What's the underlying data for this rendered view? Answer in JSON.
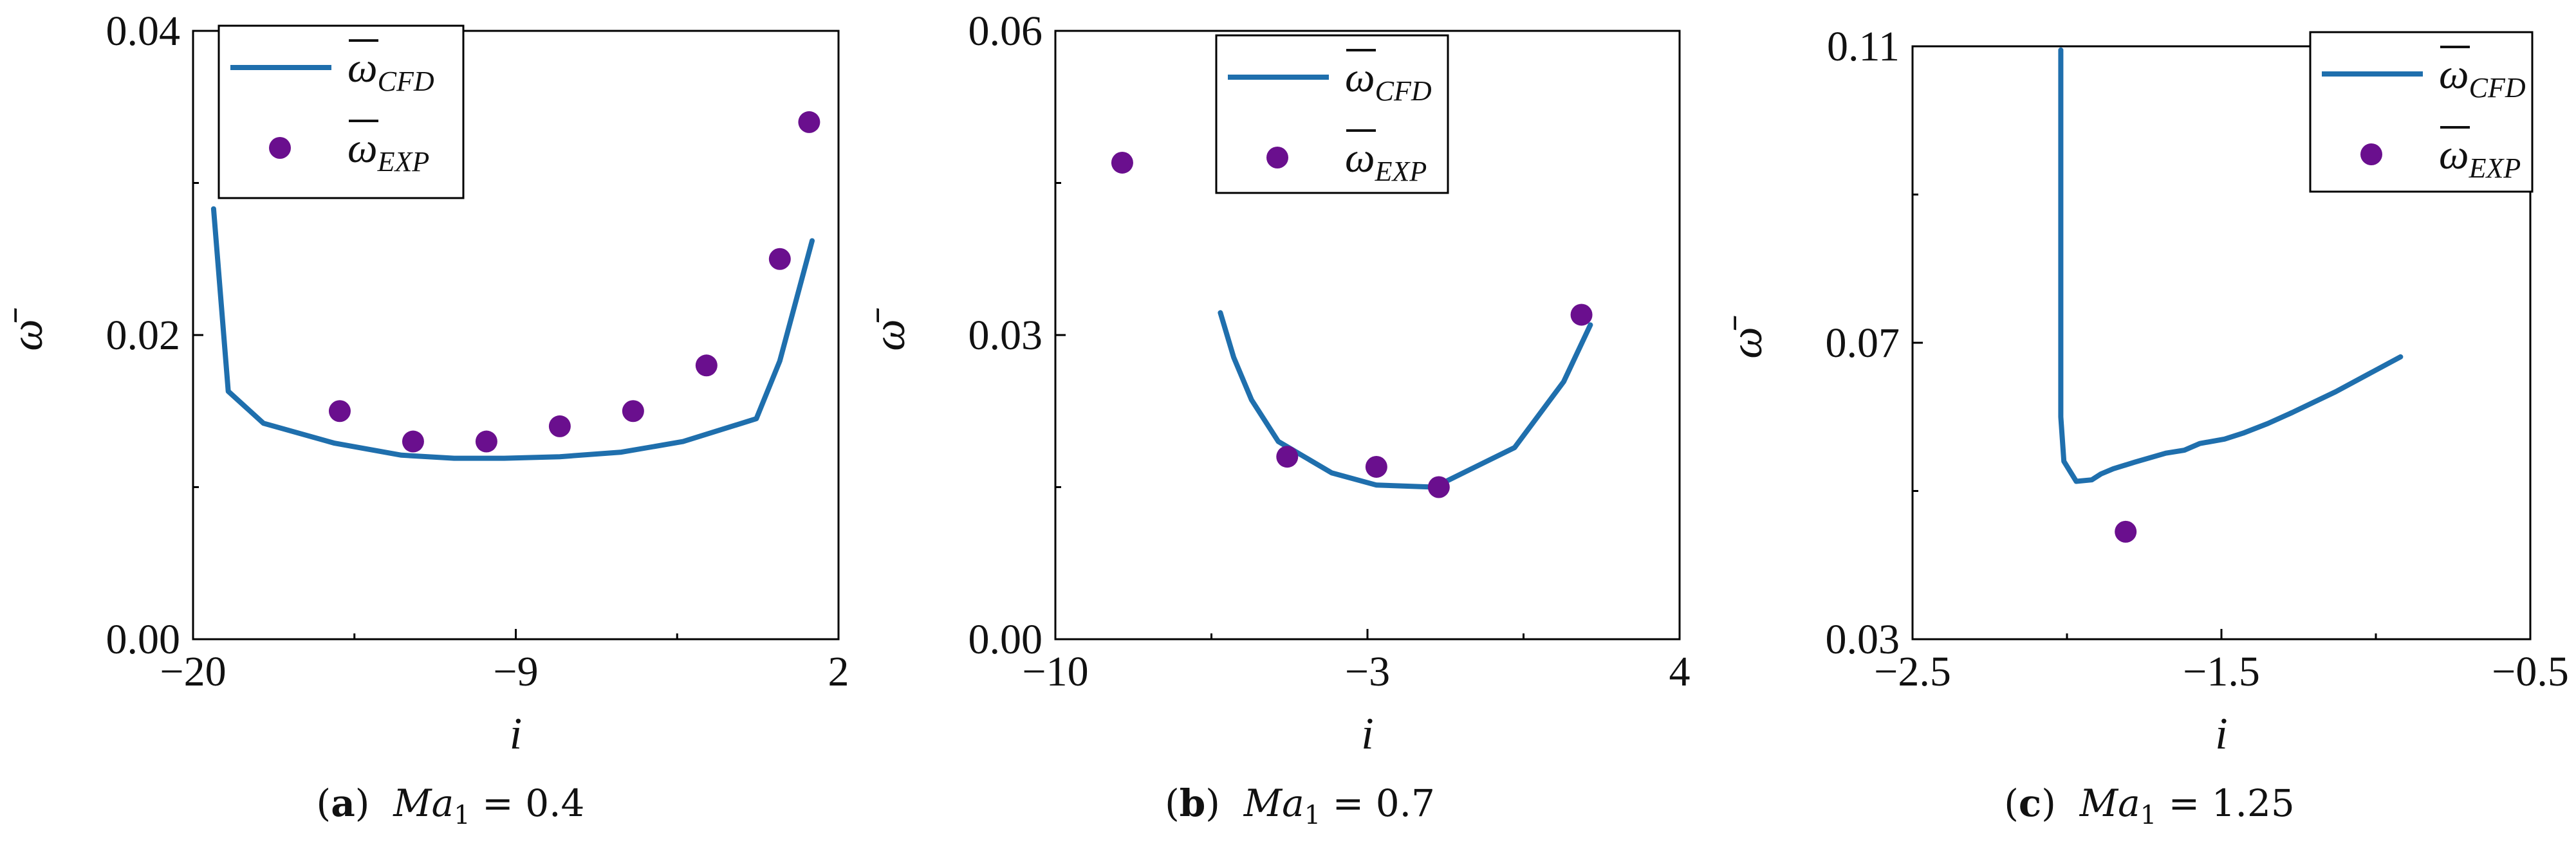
{
  "figure": {
    "panels": [
      {
        "caption": {
          "letter": "a",
          "symbol": "Ma",
          "subscript": "1",
          "relation": "=",
          "value": "0.4"
        },
        "xlabel": "i",
        "ylabel": "ω̄",
        "xticks": [
          "−20",
          "−9",
          "2"
        ],
        "yticks": [
          "0.00",
          "0.02",
          "0.04"
        ],
        "legend": [
          {
            "kind": "line",
            "symbol": "ω",
            "subscript": "CFD"
          },
          {
            "kind": "marker",
            "symbol": "ω",
            "subscript": "EXP"
          }
        ]
      },
      {
        "caption": {
          "letter": "b",
          "symbol": "Ma",
          "subscript": "1",
          "relation": "=",
          "value": "0.7"
        },
        "xlabel": "i",
        "ylabel": "ω̄",
        "xticks": [
          "−10",
          "−3",
          "4"
        ],
        "yticks": [
          "0.00",
          "0.03",
          "0.06"
        ],
        "legend": [
          {
            "kind": "line",
            "symbol": "ω",
            "subscript": "CFD"
          },
          {
            "kind": "marker",
            "symbol": "ω",
            "subscript": "EXP"
          }
        ]
      },
      {
        "caption": {
          "letter": "c",
          "symbol": "Ma",
          "subscript": "1",
          "relation": "=",
          "value": "1.25"
        },
        "xlabel": "i",
        "ylabel": "ω̄",
        "xticks": [
          "−2.5",
          "−1.5",
          "−0.5"
        ],
        "yticks": [
          "0.03",
          "0.07",
          "0.11"
        ],
        "legend": [
          {
            "kind": "line",
            "symbol": "ω",
            "subscript": "CFD"
          },
          {
            "kind": "marker",
            "symbol": "ω",
            "subscript": "EXP"
          }
        ]
      }
    ]
  },
  "colors": {
    "cfd_line": "#1f6fad",
    "exp_marker": "#6a0f8e",
    "axis": "#000000"
  },
  "chart_data": [
    {
      "type": "line",
      "xlim": [
        -20,
        2
      ],
      "ylim": [
        0,
        0.04
      ],
      "xticks": [
        -20,
        -9,
        2
      ],
      "yticks": [
        0,
        0.02,
        0.04
      ],
      "grid": false,
      "legend_position": "top-left",
      "series": [
        {
          "name": "ω̄CFD",
          "type": "line",
          "x": [
            -19.3,
            -18.8,
            -17.6,
            -15.2,
            -12.9,
            -11.1,
            -9.4,
            -7.5,
            -5.4,
            -3.3,
            -0.8,
            0.0,
            1.1
          ],
          "y": [
            0.0283,
            0.0163,
            0.0142,
            0.0129,
            0.0121,
            0.0119,
            0.0119,
            0.012,
            0.0123,
            0.013,
            0.0145,
            0.0183,
            0.0262
          ]
        },
        {
          "name": "ω̄EXP",
          "type": "scatter",
          "x": [
            -15.0,
            -12.5,
            -10.0,
            -7.5,
            -5.0,
            -2.5,
            0.0,
            1.0
          ],
          "y": [
            0.015,
            0.013,
            0.013,
            0.014,
            0.015,
            0.018,
            0.025,
            0.034
          ]
        }
      ]
    },
    {
      "type": "line",
      "xlim": [
        -10,
        4
      ],
      "ylim": [
        0,
        0.06
      ],
      "xticks": [
        -10,
        -3,
        4
      ],
      "yticks": [
        0,
        0.03,
        0.06
      ],
      "grid": false,
      "legend_position": "top-right",
      "series": [
        {
          "name": "ω̄CFD",
          "type": "line",
          "x": [
            -6.3,
            -6.0,
            -5.6,
            -5.0,
            -3.8,
            -2.8,
            -1.5,
            0.3,
            1.4,
            2.0
          ],
          "y": [
            0.0322,
            0.0278,
            0.0236,
            0.0195,
            0.0164,
            0.0152,
            0.015,
            0.0189,
            0.0254,
            0.031
          ]
        },
        {
          "name": "ω̄EXP",
          "type": "scatter",
          "x": [
            -8.5,
            -4.8,
            -2.8,
            -1.4,
            1.8
          ],
          "y": [
            0.047,
            0.018,
            0.017,
            0.015,
            0.032
          ]
        }
      ]
    },
    {
      "type": "line",
      "xlim": [
        -2.5,
        -0.5
      ],
      "ylim": [
        0.03,
        0.11
      ],
      "xticks": [
        -2.5,
        -1.5,
        -0.5
      ],
      "yticks": [
        0.03,
        0.07,
        0.11
      ],
      "grid": false,
      "legend_position": "top-right",
      "series": [
        {
          "name": "ω̄CFD",
          "type": "line",
          "x": [
            -2.02,
            -2.02,
            -2.01,
            -1.97,
            -1.92,
            -1.89,
            -1.85,
            -1.78,
            -1.68,
            -1.62,
            -1.57,
            -1.49,
            -1.43,
            -1.35,
            -1.27,
            -1.13,
            -0.92
          ],
          "y": [
            0.1095,
            0.06,
            0.054,
            0.0513,
            0.0515,
            0.0523,
            0.053,
            0.0539,
            0.0551,
            0.0555,
            0.0564,
            0.057,
            0.0578,
            0.0591,
            0.0606,
            0.0634,
            0.0681
          ]
        },
        {
          "name": "ω̄EXP",
          "type": "scatter",
          "x": [
            -1.81
          ],
          "y": [
            0.0445
          ]
        }
      ]
    }
  ]
}
